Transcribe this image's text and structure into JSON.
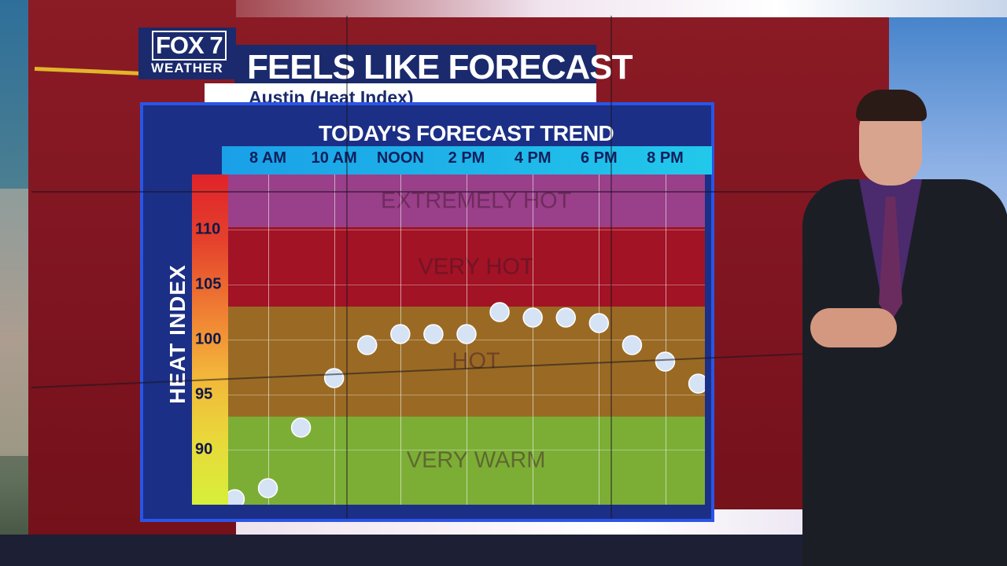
{
  "branding": {
    "logo_main": "FOX 7",
    "logo_sub": "WEATHER"
  },
  "header": {
    "title": "FEELS LIKE FORECAST",
    "subtitle": "Austin (Heat Index)"
  },
  "panel_title": "TODAY'S FORECAST TREND",
  "colors": {
    "banner_navy": "#1a2a6c",
    "panel_blue": "#2a55e6",
    "time_strip": "#1aa0e8",
    "point_fill": "#d6e3f5"
  },
  "chart_data": {
    "type": "scatter",
    "title": "TODAY'S FORECAST TREND",
    "ylabel": "HEAT INDEX",
    "xlabel": "",
    "x_tick_labels": [
      "8 AM",
      "10 AM",
      "NOON",
      "2 PM",
      "4 PM",
      "6 PM",
      "8 PM"
    ],
    "y_ticks": [
      90,
      95,
      100,
      105,
      110
    ],
    "ylim": [
      85,
      115
    ],
    "xlim": [
      6.8,
      21.2
    ],
    "bands": [
      {
        "label": "EXTREMELY HOT",
        "from": 110.2,
        "to": 115,
        "color": "#9a3f8a"
      },
      {
        "label": "VERY HOT",
        "from": 103.0,
        "to": 110.2,
        "color": "#a11325"
      },
      {
        "label": "HOT",
        "from": 93.0,
        "to": 103.0,
        "color": "#9a6a24"
      },
      {
        "label": "VERY WARM",
        "from": 85,
        "to": 93.0,
        "color": "#7cae36"
      }
    ],
    "x": [
      7,
      8,
      9,
      10,
      11,
      12,
      13,
      14,
      15,
      16,
      17,
      18,
      19,
      20,
      21
    ],
    "values": [
      85.5,
      86.5,
      92.0,
      96.5,
      99.5,
      100.5,
      100.5,
      100.5,
      102.5,
      102.0,
      102.0,
      101.5,
      99.5,
      98.0,
      96.0
    ],
    "grid": true,
    "legend": "none"
  }
}
